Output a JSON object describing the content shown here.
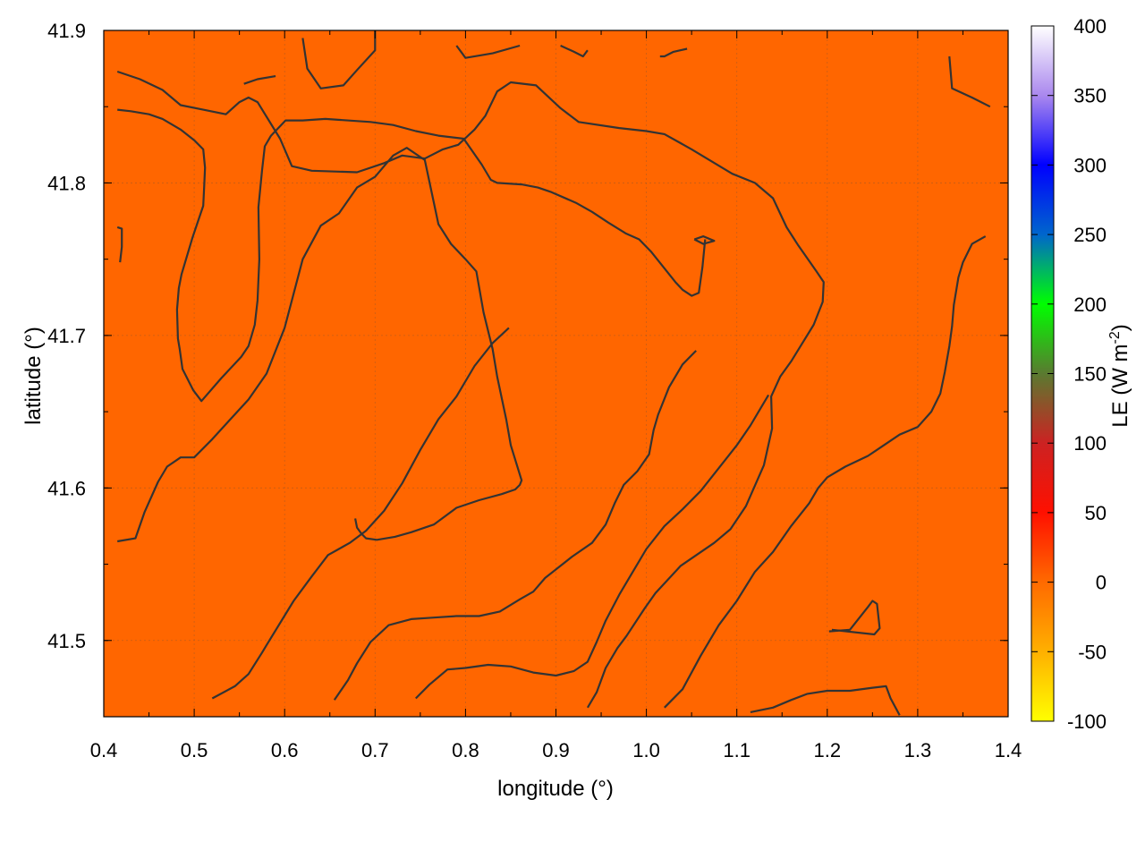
{
  "chart_data": {
    "type": "heatmap",
    "title": "",
    "xlabel": "longitude (°)",
    "ylabel": "latitude (°)",
    "colorbar_label_main": "LE (W m",
    "colorbar_label_sup": "-2",
    "colorbar_label_close": ")",
    "xlim": [
      0.4,
      1.4
    ],
    "ylim": [
      41.45,
      41.9
    ],
    "x_ticks": [
      0.4,
      0.5,
      0.6,
      0.7,
      0.8,
      0.9,
      1.0,
      1.1,
      1.2,
      1.3,
      1.4
    ],
    "x_tick_labels": [
      "0.4",
      "0.5",
      "0.6",
      "0.7",
      "0.8",
      "0.9",
      "1.0",
      "1.1",
      "1.2",
      "1.3",
      "1.4"
    ],
    "y_ticks": [
      41.5,
      41.6,
      41.7,
      41.8,
      41.9
    ],
    "y_tick_labels": [
      "41.5",
      "41.6",
      "41.7",
      "41.8",
      "41.9"
    ],
    "colorbar_range": [
      -100,
      400
    ],
    "colorbar_ticks": [
      -100,
      -50,
      0,
      50,
      100,
      150,
      200,
      250,
      300,
      350,
      400
    ],
    "colorbar_tick_labels": [
      "-100",
      "-50",
      "0",
      "50",
      "100",
      "150",
      "200",
      "250",
      "300",
      "350",
      "400"
    ],
    "colormap_stops": [
      {
        "value": -100,
        "color": "#ffff00"
      },
      {
        "value": -50,
        "color": "#ffb000"
      },
      {
        "value": 0,
        "color": "#ff6a00"
      },
      {
        "value": 50,
        "color": "#ff1000"
      },
      {
        "value": 100,
        "color": "#cc2222"
      },
      {
        "value": 150,
        "color": "#5a7a30"
      },
      {
        "value": 200,
        "color": "#00ff00"
      },
      {
        "value": 250,
        "color": "#0066cc"
      },
      {
        "value": 300,
        "color": "#0000ff"
      },
      {
        "value": 350,
        "color": "#aa88ee"
      },
      {
        "value": 400,
        "color": "#ffffff"
      }
    ],
    "field_approx_value": 5,
    "field_color": "#ff6600",
    "grid": true,
    "contour_color": "#333333",
    "contours": [
      [
        [
          0.415,
          41.873
        ],
        [
          0.44,
          41.868
        ],
        [
          0.465,
          41.861
        ],
        [
          0.485,
          41.851
        ],
        [
          0.51,
          41.848
        ],
        [
          0.535,
          41.845
        ],
        [
          0.55,
          41.853
        ],
        [
          0.56,
          41.856
        ],
        [
          0.57,
          41.853
        ],
        [
          0.595,
          41.829
        ],
        [
          0.608,
          41.811
        ],
        [
          0.63,
          41.808
        ],
        [
          0.68,
          41.807
        ],
        [
          0.71,
          41.813
        ],
        [
          0.73,
          41.818
        ],
        [
          0.755,
          41.816
        ],
        [
          0.775,
          41.822
        ],
        [
          0.792,
          41.825
        ],
        [
          0.81,
          41.835
        ],
        [
          0.822,
          41.844
        ],
        [
          0.835,
          41.86
        ],
        [
          0.85,
          41.866
        ],
        [
          0.878,
          41.864
        ],
        [
          0.905,
          41.849
        ],
        [
          0.925,
          41.84
        ],
        [
          0.97,
          41.836
        ],
        [
          1.0,
          41.834
        ],
        [
          1.02,
          41.832
        ],
        [
          1.05,
          41.822
        ],
        [
          1.095,
          41.806
        ],
        [
          1.12,
          41.8
        ],
        [
          1.14,
          41.79
        ],
        [
          1.155,
          41.771
        ],
        [
          1.168,
          41.759
        ],
        [
          1.188,
          41.742
        ],
        [
          1.196,
          41.735
        ],
        [
          1.195,
          41.722
        ],
        [
          1.185,
          41.707
        ],
        [
          1.16,
          41.683
        ],
        [
          1.148,
          41.673
        ],
        [
          1.138,
          41.66
        ],
        [
          1.139,
          41.639
        ],
        [
          1.13,
          41.615
        ],
        [
          1.11,
          41.588
        ],
        [
          1.093,
          41.573
        ],
        [
          1.075,
          41.564
        ],
        [
          1.038,
          41.549
        ],
        [
          1.01,
          41.531
        ],
        [
          0.998,
          41.521
        ],
        [
          0.978,
          41.503
        ],
        [
          0.968,
          41.495
        ],
        [
          0.955,
          41.482
        ],
        [
          0.945,
          41.466
        ],
        [
          0.935,
          41.456
        ]
      ],
      [
        [
          0.415,
          41.848
        ],
        [
          0.43,
          41.847
        ],
        [
          0.45,
          41.845
        ],
        [
          0.465,
          41.842
        ],
        [
          0.485,
          41.835
        ],
        [
          0.5,
          41.828
        ],
        [
          0.51,
          41.822
        ],
        [
          0.512,
          41.81
        ],
        [
          0.511,
          41.797
        ],
        [
          0.51,
          41.785
        ],
        [
          0.498,
          41.764
        ],
        [
          0.486,
          41.74
        ],
        [
          0.483,
          41.731
        ],
        [
          0.481,
          41.717
        ],
        [
          0.482,
          41.698
        ],
        [
          0.484,
          41.691
        ],
        [
          0.487,
          41.678
        ],
        [
          0.499,
          41.664
        ],
        [
          0.508,
          41.657
        ],
        [
          0.53,
          41.672
        ],
        [
          0.552,
          41.686
        ],
        [
          0.56,
          41.693
        ],
        [
          0.567,
          41.707
        ],
        [
          0.57,
          41.723
        ],
        [
          0.572,
          41.75
        ],
        [
          0.571,
          41.784
        ],
        [
          0.575,
          41.808
        ],
        [
          0.578,
          41.824
        ],
        [
          0.585,
          41.831
        ],
        [
          0.601,
          41.841
        ],
        [
          0.62,
          41.841
        ],
        [
          0.645,
          41.842
        ],
        [
          0.695,
          41.84
        ],
        [
          0.72,
          41.838
        ],
        [
          0.745,
          41.834
        ],
        [
          0.77,
          41.831
        ],
        [
          0.798,
          41.829
        ],
        [
          0.818,
          41.812
        ],
        [
          0.828,
          41.802
        ],
        [
          0.835,
          41.8
        ],
        [
          0.862,
          41.799
        ],
        [
          0.88,
          41.797
        ],
        [
          0.895,
          41.794
        ],
        [
          0.922,
          41.787
        ],
        [
          0.94,
          41.781
        ],
        [
          0.958,
          41.774
        ],
        [
          0.977,
          41.767
        ],
        [
          0.992,
          41.763
        ],
        [
          1.005,
          41.755
        ],
        [
          1.02,
          41.744
        ],
        [
          1.032,
          41.735
        ],
        [
          1.04,
          41.73
        ],
        [
          1.05,
          41.726
        ],
        [
          1.058,
          41.728
        ],
        [
          1.062,
          41.745
        ],
        [
          1.065,
          41.763
        ]
      ],
      [
        [
          0.415,
          41.565
        ],
        [
          0.435,
          41.567
        ],
        [
          0.445,
          41.584
        ],
        [
          0.46,
          41.604
        ],
        [
          0.47,
          41.614
        ],
        [
          0.485,
          41.62
        ],
        [
          0.5,
          41.62
        ],
        [
          0.52,
          41.632
        ],
        [
          0.54,
          41.645
        ],
        [
          0.56,
          41.658
        ],
        [
          0.58,
          41.675
        ],
        [
          0.6,
          41.705
        ],
        [
          0.62,
          41.75
        ],
        [
          0.64,
          41.772
        ],
        [
          0.66,
          41.78
        ],
        [
          0.68,
          41.797
        ],
        [
          0.7,
          41.804
        ],
        [
          0.72,
          41.818
        ],
        [
          0.735,
          41.823
        ],
        [
          0.755,
          41.815
        ],
        [
          0.77,
          41.773
        ],
        [
          0.784,
          41.76
        ],
        [
          0.8,
          41.75
        ],
        [
          0.812,
          41.742
        ],
        [
          0.82,
          41.715
        ],
        [
          0.83,
          41.691
        ],
        [
          0.835,
          41.673
        ],
        [
          0.845,
          41.645
        ],
        [
          0.85,
          41.628
        ],
        [
          0.862,
          41.605
        ],
        [
          0.86,
          41.602
        ],
        [
          0.855,
          41.599
        ],
        [
          0.84,
          41.596
        ],
        [
          0.815,
          41.592
        ],
        [
          0.79,
          41.587
        ],
        [
          0.765,
          41.576
        ],
        [
          0.74,
          41.571
        ],
        [
          0.722,
          41.568
        ],
        [
          0.702,
          41.566
        ],
        [
          0.69,
          41.567
        ],
        [
          0.685,
          41.57
        ],
        [
          0.68,
          41.574
        ],
        [
          0.678,
          41.58
        ]
      ],
      [
        [
          0.52,
          41.462
        ],
        [
          0.545,
          41.47
        ],
        [
          0.56,
          41.478
        ],
        [
          0.575,
          41.492
        ],
        [
          0.58,
          41.497
        ],
        [
          0.61,
          41.526
        ],
        [
          0.63,
          41.542
        ],
        [
          0.648,
          41.556
        ],
        [
          0.66,
          41.56
        ],
        [
          0.672,
          41.564
        ],
        [
          0.69,
          41.572
        ],
        [
          0.71,
          41.585
        ],
        [
          0.73,
          41.603
        ],
        [
          0.75,
          41.625
        ],
        [
          0.77,
          41.645
        ],
        [
          0.79,
          41.66
        ],
        [
          0.81,
          41.68
        ],
        [
          0.83,
          41.695
        ],
        [
          0.848,
          41.705
        ]
      ],
      [
        [
          0.655,
          41.461
        ],
        [
          0.67,
          41.474
        ],
        [
          0.68,
          41.485
        ],
        [
          0.695,
          41.499
        ],
        [
          0.715,
          41.51
        ],
        [
          0.74,
          41.514
        ],
        [
          0.765,
          41.515
        ],
        [
          0.79,
          41.516
        ],
        [
          0.815,
          41.516
        ],
        [
          0.838,
          41.519
        ],
        [
          0.86,
          41.527
        ],
        [
          0.875,
          41.532
        ],
        [
          0.888,
          41.541
        ],
        [
          0.903,
          41.548
        ],
        [
          0.918,
          41.555
        ],
        [
          0.94,
          41.564
        ],
        [
          0.955,
          41.576
        ],
        [
          0.965,
          41.59
        ],
        [
          0.975,
          41.602
        ],
        [
          0.99,
          41.611
        ],
        [
          1.003,
          41.622
        ],
        [
          1.008,
          41.638
        ],
        [
          1.013,
          41.648
        ],
        [
          1.025,
          41.666
        ],
        [
          1.04,
          41.681
        ],
        [
          1.055,
          41.69
        ]
      ],
      [
        [
          0.745,
          41.462
        ],
        [
          0.76,
          41.471
        ],
        [
          0.78,
          41.481
        ],
        [
          0.8,
          41.482
        ],
        [
          0.825,
          41.484
        ],
        [
          0.85,
          41.483
        ],
        [
          0.875,
          41.479
        ],
        [
          0.9,
          41.477
        ],
        [
          0.92,
          41.48
        ],
        [
          0.935,
          41.486
        ],
        [
          0.945,
          41.499
        ],
        [
          0.955,
          41.513
        ],
        [
          0.97,
          41.53
        ],
        [
          0.985,
          41.545
        ],
        [
          1.0,
          41.56
        ],
        [
          1.02,
          41.575
        ],
        [
          1.04,
          41.586
        ],
        [
          1.06,
          41.598
        ],
        [
          1.08,
          41.613
        ],
        [
          1.1,
          41.628
        ],
        [
          1.115,
          41.641
        ],
        [
          1.125,
          41.651
        ],
        [
          1.135,
          41.661
        ]
      ],
      [
        [
          1.02,
          41.456
        ],
        [
          1.04,
          41.468
        ],
        [
          1.06,
          41.49
        ],
        [
          1.08,
          41.51
        ],
        [
          1.1,
          41.526
        ],
        [
          1.12,
          41.545
        ],
        [
          1.14,
          41.558
        ],
        [
          1.16,
          41.575
        ],
        [
          1.18,
          41.59
        ],
        [
          1.19,
          41.6
        ],
        [
          1.2,
          41.607
        ],
        [
          1.22,
          41.614
        ],
        [
          1.245,
          41.621
        ],
        [
          1.26,
          41.627
        ],
        [
          1.28,
          41.635
        ],
        [
          1.3,
          41.64
        ],
        [
          1.315,
          41.65
        ],
        [
          1.325,
          41.662
        ],
        [
          1.33,
          41.676
        ],
        [
          1.335,
          41.693
        ],
        [
          1.338,
          41.706
        ],
        [
          1.34,
          41.72
        ],
        [
          1.345,
          41.738
        ],
        [
          1.35,
          41.748
        ],
        [
          1.36,
          41.76
        ],
        [
          1.375,
          41.765
        ]
      ],
      [
        [
          1.115,
          41.453
        ],
        [
          1.14,
          41.456
        ],
        [
          1.16,
          41.461
        ],
        [
          1.178,
          41.465
        ],
        [
          1.2,
          41.467
        ],
        [
          1.225,
          41.467
        ],
        [
          1.25,
          41.469
        ],
        [
          1.265,
          41.47
        ],
        [
          1.27,
          41.462
        ],
        [
          1.28,
          41.451
        ]
      ],
      [
        [
          1.202,
          41.506
        ],
        [
          1.225,
          41.507
        ],
        [
          1.245,
          41.522
        ],
        [
          1.25,
          41.526
        ],
        [
          1.255,
          41.524
        ],
        [
          1.258,
          41.508
        ],
        [
          1.252,
          41.504
        ],
        [
          1.205,
          41.507
        ]
      ],
      [
        [
          1.335,
          41.883
        ],
        [
          1.338,
          41.862
        ],
        [
          1.36,
          41.856
        ],
        [
          1.38,
          41.85
        ]
      ],
      [
        [
          0.415,
          41.771
        ],
        [
          0.42,
          41.77
        ],
        [
          0.42,
          41.758
        ],
        [
          0.418,
          41.748
        ]
      ],
      [
        [
          1.053,
          41.763
        ],
        [
          1.063,
          41.765
        ],
        [
          1.075,
          41.762
        ],
        [
          1.063,
          41.76
        ],
        [
          1.053,
          41.763
        ]
      ],
      [
        [
          0.62,
          41.895
        ],
        [
          0.625,
          41.875
        ],
        [
          0.64,
          41.862
        ],
        [
          0.665,
          41.864
        ],
        [
          0.68,
          41.874
        ],
        [
          0.7,
          41.887
        ],
        [
          0.7,
          41.9
        ]
      ],
      [
        [
          0.79,
          41.89
        ],
        [
          0.8,
          41.882
        ],
        [
          0.83,
          41.885
        ],
        [
          0.86,
          41.89
        ]
      ],
      [
        [
          0.905,
          41.89
        ],
        [
          0.92,
          41.886
        ],
        [
          0.93,
          41.883
        ],
        [
          0.935,
          41.887
        ]
      ],
      [
        [
          1.015,
          41.883
        ],
        [
          1.02,
          41.883
        ],
        [
          1.03,
          41.886
        ],
        [
          1.045,
          41.888
        ]
      ],
      [
        [
          0.555,
          41.865
        ],
        [
          0.57,
          41.868
        ],
        [
          0.59,
          41.87
        ]
      ]
    ]
  }
}
